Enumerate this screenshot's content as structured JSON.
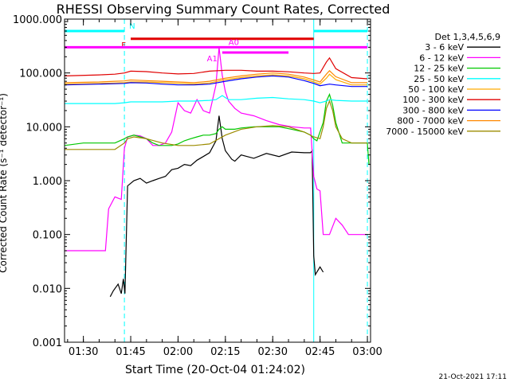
{
  "chart_data": {
    "type": "line",
    "title": "RHESSI Observing Summary Count Rates, Corrected",
    "ylabel": "Corrected Count Rate (s⁻¹ detector⁻¹)",
    "xlabel": "Start Time (20-Oct-04 01:24:02)",
    "footer_timestamp": "21-Oct-2021 17:11",
    "y_scale": "log",
    "ylim": [
      0.001,
      1000
    ],
    "xlim": [
      "01:24:02",
      "03:01:00"
    ],
    "grid": false,
    "legend_position": "right",
    "x_ticks": [
      "01:30",
      "01:45",
      "02:00",
      "02:15",
      "02:30",
      "02:45",
      "03:00"
    ],
    "y_ticks": [
      "0.001",
      "0.010",
      "0.100",
      "1.000",
      "10.000",
      "100.000",
      "1000.000"
    ],
    "legend_title": "Det 1,3,4,5,6,9",
    "series": [
      {
        "name": "3 - 6 keV",
        "color": "#000000",
        "x": [
          "01:38:30",
          "01:39:30",
          "01:41",
          "01:42",
          "01:42:40",
          "01:43:10",
          "01:44",
          "01:46",
          "01:48",
          "01:50",
          "01:52",
          "01:54",
          "01:56",
          "01:58",
          "02:00",
          "02:02",
          "02:04",
          "02:06",
          "02:08",
          "02:10",
          "02:12",
          "02:13",
          "02:14",
          "02:15",
          "02:16",
          "02:17",
          "02:18",
          "02:20",
          "02:24",
          "02:28",
          "02:32",
          "02:36",
          "02:40",
          "02:42",
          "02:42:30",
          "02:43",
          "02:43:30",
          "02:45",
          "02:46"
        ],
        "values": [
          0.007,
          0.009,
          0.012,
          0.008,
          0.015,
          0.008,
          0.8,
          1.0,
          1.1,
          0.9,
          1.0,
          1.1,
          1.2,
          1.6,
          1.7,
          2.0,
          1.9,
          2.4,
          2.8,
          3.3,
          5.5,
          16,
          6,
          3.6,
          3.0,
          2.5,
          2.3,
          3,
          2.6,
          3.2,
          2.8,
          3.4,
          3.3,
          3.3,
          3.6,
          0.04,
          0.018,
          0.025,
          0.02
        ]
      },
      {
        "name": "6 - 12 keV",
        "color": "#ff00ff",
        "x": [
          "01:24:02",
          "01:35",
          "01:37",
          "01:38",
          "01:40",
          "01:42",
          "01:43",
          "01:44",
          "01:46",
          "01:48",
          "01:50",
          "01:52",
          "01:54",
          "01:56",
          "01:58",
          "02:00",
          "02:02",
          "02:04",
          "02:06",
          "02:08",
          "02:10",
          "02:12",
          "02:13",
          "02:14",
          "02:15",
          "02:16",
          "02:18",
          "02:20",
          "02:24",
          "02:28",
          "02:32",
          "02:36",
          "02:40",
          "02:42",
          "02:43",
          "02:44",
          "02:45",
          "02:46",
          "02:48",
          "02:50",
          "02:52",
          "02:54",
          "02:56",
          "02:58",
          "03:00"
        ],
        "values": [
          0.05,
          0.05,
          0.05,
          0.3,
          0.5,
          0.45,
          4,
          6.5,
          7,
          6.8,
          6,
          4.5,
          4.5,
          5,
          8,
          28,
          20,
          18,
          32,
          20,
          18,
          60,
          300,
          90,
          45,
          30,
          22,
          18,
          16,
          13,
          11,
          10,
          9.5,
          9.5,
          1.2,
          0.7,
          0.65,
          0.1,
          0.1,
          0.2,
          0.15,
          0.1,
          0.1,
          0.1,
          0.1
        ]
      },
      {
        "name": "12 - 25 keV",
        "color": "#00c800",
        "x": [
          "01:24:02",
          "01:30",
          "01:35",
          "01:40",
          "01:43",
          "01:44",
          "01:46",
          "01:48",
          "01:50",
          "01:52",
          "01:54",
          "01:56",
          "01:58",
          "02:00",
          "02:02",
          "02:04",
          "02:06",
          "02:08",
          "02:10",
          "02:12",
          "02:13",
          "02:14",
          "02:15",
          "02:16",
          "02:18",
          "02:20",
          "02:24",
          "02:28",
          "02:32",
          "02:36",
          "02:40",
          "02:42",
          "02:43",
          "02:44",
          "02:46",
          "02:47",
          "02:48",
          "02:49",
          "02:50",
          "02:52",
          "02:54",
          "02:56",
          "02:58",
          "03:00",
          "03:00:30"
        ],
        "values": [
          4.5,
          5,
          5,
          5,
          6,
          6.5,
          7,
          6.5,
          6,
          5,
          4.5,
          4.5,
          4.5,
          4.8,
          5.5,
          6,
          6.5,
          7,
          7,
          7.5,
          9,
          10,
          9,
          9,
          9,
          9.5,
          10,
          10,
          10,
          9,
          8,
          7,
          6,
          5.5,
          12,
          30,
          40,
          25,
          12,
          5,
          5,
          5,
          5,
          5,
          2
        ]
      },
      {
        "name": "25 - 50 keV",
        "color": "#00ffff",
        "x": [
          "01:24:02",
          "01:30",
          "01:35",
          "01:40",
          "01:43",
          "01:45",
          "01:50",
          "01:55",
          "02:00",
          "02:05",
          "02:10",
          "02:12",
          "02:14",
          "02:16",
          "02:20",
          "02:25",
          "02:30",
          "02:35",
          "02:40",
          "02:43",
          "02:45",
          "02:47",
          "02:48",
          "02:50",
          "02:55",
          "03:00"
        ],
        "values": [
          27,
          27,
          27,
          27,
          28,
          29,
          29,
          29,
          30,
          30,
          31,
          32,
          38,
          32,
          32,
          34,
          35,
          33,
          32,
          30,
          28,
          30,
          32,
          31,
          30,
          30
        ]
      },
      {
        "name": "50 - 100 keV",
        "color": "#ffaa00",
        "x": [
          "01:24:02",
          "01:35",
          "01:40",
          "01:43",
          "01:45",
          "01:50",
          "01:55",
          "02:00",
          "02:05",
          "02:10",
          "02:15",
          "02:20",
          "02:25",
          "02:30",
          "02:35",
          "02:40",
          "02:43",
          "02:45",
          "02:47",
          "02:48",
          "02:50",
          "02:55",
          "03:00"
        ],
        "values": [
          62,
          64,
          65,
          66,
          68,
          68,
          66,
          64,
          62,
          65,
          75,
          82,
          88,
          92,
          88,
          78,
          68,
          62,
          80,
          95,
          75,
          60,
          60
        ]
      },
      {
        "name": "100 - 300 keV",
        "color": "#e00000",
        "x": [
          "01:24:02",
          "01:35",
          "01:40",
          "01:43",
          "01:45",
          "01:50",
          "01:55",
          "02:00",
          "02:05",
          "02:10",
          "02:15",
          "02:20",
          "02:25",
          "02:30",
          "02:35",
          "02:40",
          "02:43",
          "02:45",
          "02:47",
          "02:48",
          "02:50",
          "02:55",
          "03:00"
        ],
        "values": [
          88,
          92,
          95,
          100,
          108,
          106,
          100,
          96,
          98,
          108,
          112,
          112,
          108,
          108,
          105,
          100,
          98,
          100,
          160,
          190,
          120,
          82,
          78
        ]
      },
      {
        "name": "300 - 800 keV",
        "color": "#0000ff",
        "x": [
          "01:24:02",
          "01:35",
          "01:40",
          "01:43",
          "01:45",
          "01:50",
          "01:55",
          "02:00",
          "02:05",
          "02:10",
          "02:15",
          "02:20",
          "02:25",
          "02:30",
          "02:35",
          "02:40",
          "02:43",
          "02:45",
          "02:48",
          "02:50",
          "02:55",
          "03:00"
        ],
        "values": [
          60,
          62,
          63,
          64,
          66,
          65,
          62,
          60,
          60,
          62,
          70,
          78,
          84,
          88,
          84,
          72,
          64,
          58,
          62,
          60,
          56,
          56
        ]
      },
      {
        "name": "800 - 7000 keV",
        "color": "#ff8800",
        "x": [
          "01:24:02",
          "01:35",
          "01:40",
          "01:43",
          "01:45",
          "01:50",
          "01:55",
          "02:00",
          "02:05",
          "02:10",
          "02:15",
          "02:20",
          "02:25",
          "02:30",
          "02:35",
          "02:40",
          "02:43",
          "02:45",
          "02:47",
          "02:48",
          "02:50",
          "02:55",
          "03:00"
        ],
        "values": [
          66,
          68,
          70,
          71,
          74,
          72,
          70,
          68,
          66,
          70,
          80,
          88,
          95,
          100,
          95,
          84,
          74,
          68,
          95,
          110,
          85,
          66,
          66
        ]
      },
      {
        "name": "7000 - 15000 keV",
        "color": "#9c8c00",
        "x": [
          "01:24:02",
          "01:30",
          "01:35",
          "01:40",
          "01:43",
          "01:44",
          "01:46",
          "01:50",
          "01:55",
          "02:00",
          "02:05",
          "02:10",
          "02:15",
          "02:20",
          "02:25",
          "02:30",
          "02:35",
          "02:40",
          "02:43",
          "02:45",
          "02:46",
          "02:47",
          "02:48",
          "02:49",
          "02:50",
          "02:52",
          "02:55",
          "03:00"
        ],
        "values": [
          3.8,
          3.8,
          3.8,
          3.8,
          5,
          6,
          6.5,
          6,
          5,
          4.5,
          4.5,
          4.8,
          7,
          9,
          10,
          10.5,
          10,
          8,
          6.5,
          6,
          10,
          22,
          30,
          20,
          10,
          6,
          5,
          5
        ]
      }
    ],
    "annotations": {
      "markers": [
        {
          "label": "N",
          "color": "#00ffff",
          "segments": [
            [
              "01:24:02",
              "01:43"
            ],
            [
              "02:43",
              "03:00"
            ]
          ],
          "y": 600
        },
        {
          "label": "F",
          "color": "#e00000",
          "segments": [
            [
              "01:45",
              "02:43"
            ]
          ],
          "y": 430
        },
        {
          "label": "A0",
          "color": "#ff00ff",
          "segments": [
            [
              "01:24:02",
              "02:35"
            ],
            [
              "02:35",
              "03:00"
            ]
          ],
          "y": 300
        },
        {
          "label": "A1",
          "color": "#ff00ff",
          "segments": [
            [
              "02:14",
              "02:35"
            ]
          ],
          "y": 240
        }
      ],
      "vlines": [
        {
          "time": "01:43",
          "color": "#00ffff",
          "style": "dashed"
        },
        {
          "time": "02:43",
          "color": "#00ffff",
          "style": "solid"
        },
        {
          "time": "03:00",
          "color": "#00ffff",
          "style": "dashed"
        }
      ]
    }
  }
}
